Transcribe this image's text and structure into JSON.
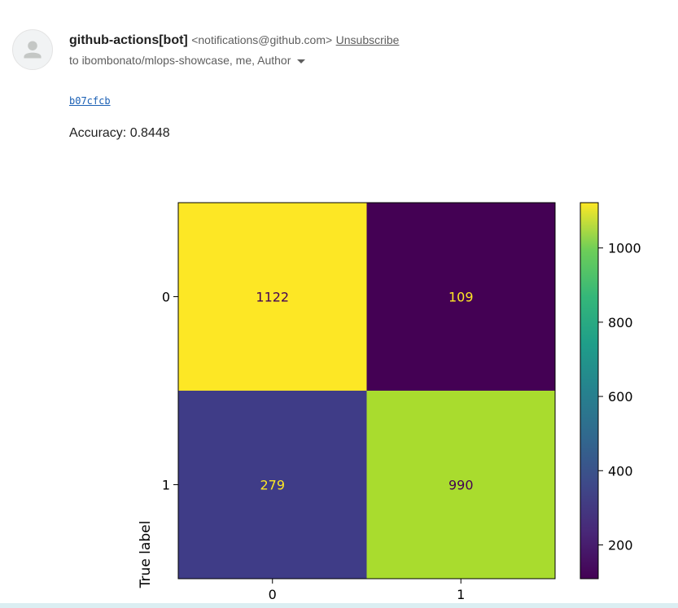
{
  "email": {
    "sender_name": "github-actions[bot]",
    "sender_email": "<notifications@github.com>",
    "unsubscribe_label": "Unsubscribe",
    "recipients": "to ibombonato/mlops-showcase, me, Author",
    "commit_link": "b07cfcb",
    "accuracy_text": "Accuracy: 0.8448"
  },
  "icons": {
    "avatar": "person-icon",
    "recipients_toggle": "caret-down-icon"
  },
  "chart_data": {
    "type": "heatmap",
    "ylabel": "True label",
    "row_labels": [
      "0",
      "1"
    ],
    "col_labels": [
      "0",
      "1"
    ],
    "values": [
      [
        1122,
        109
      ],
      [
        279,
        990
      ]
    ],
    "colormap": "viridis",
    "colorbar": {
      "range": [
        109,
        1122
      ],
      "ticks": [
        200,
        400,
        600,
        800,
        1000
      ]
    },
    "cell_colors": [
      [
        "#fde725",
        "#440154"
      ],
      [
        "#3f3c87",
        "#a9dc2e"
      ]
    ],
    "cell_text_colors": [
      [
        "#440154",
        "#fde725"
      ],
      [
        "#fde725",
        "#440154"
      ]
    ]
  }
}
